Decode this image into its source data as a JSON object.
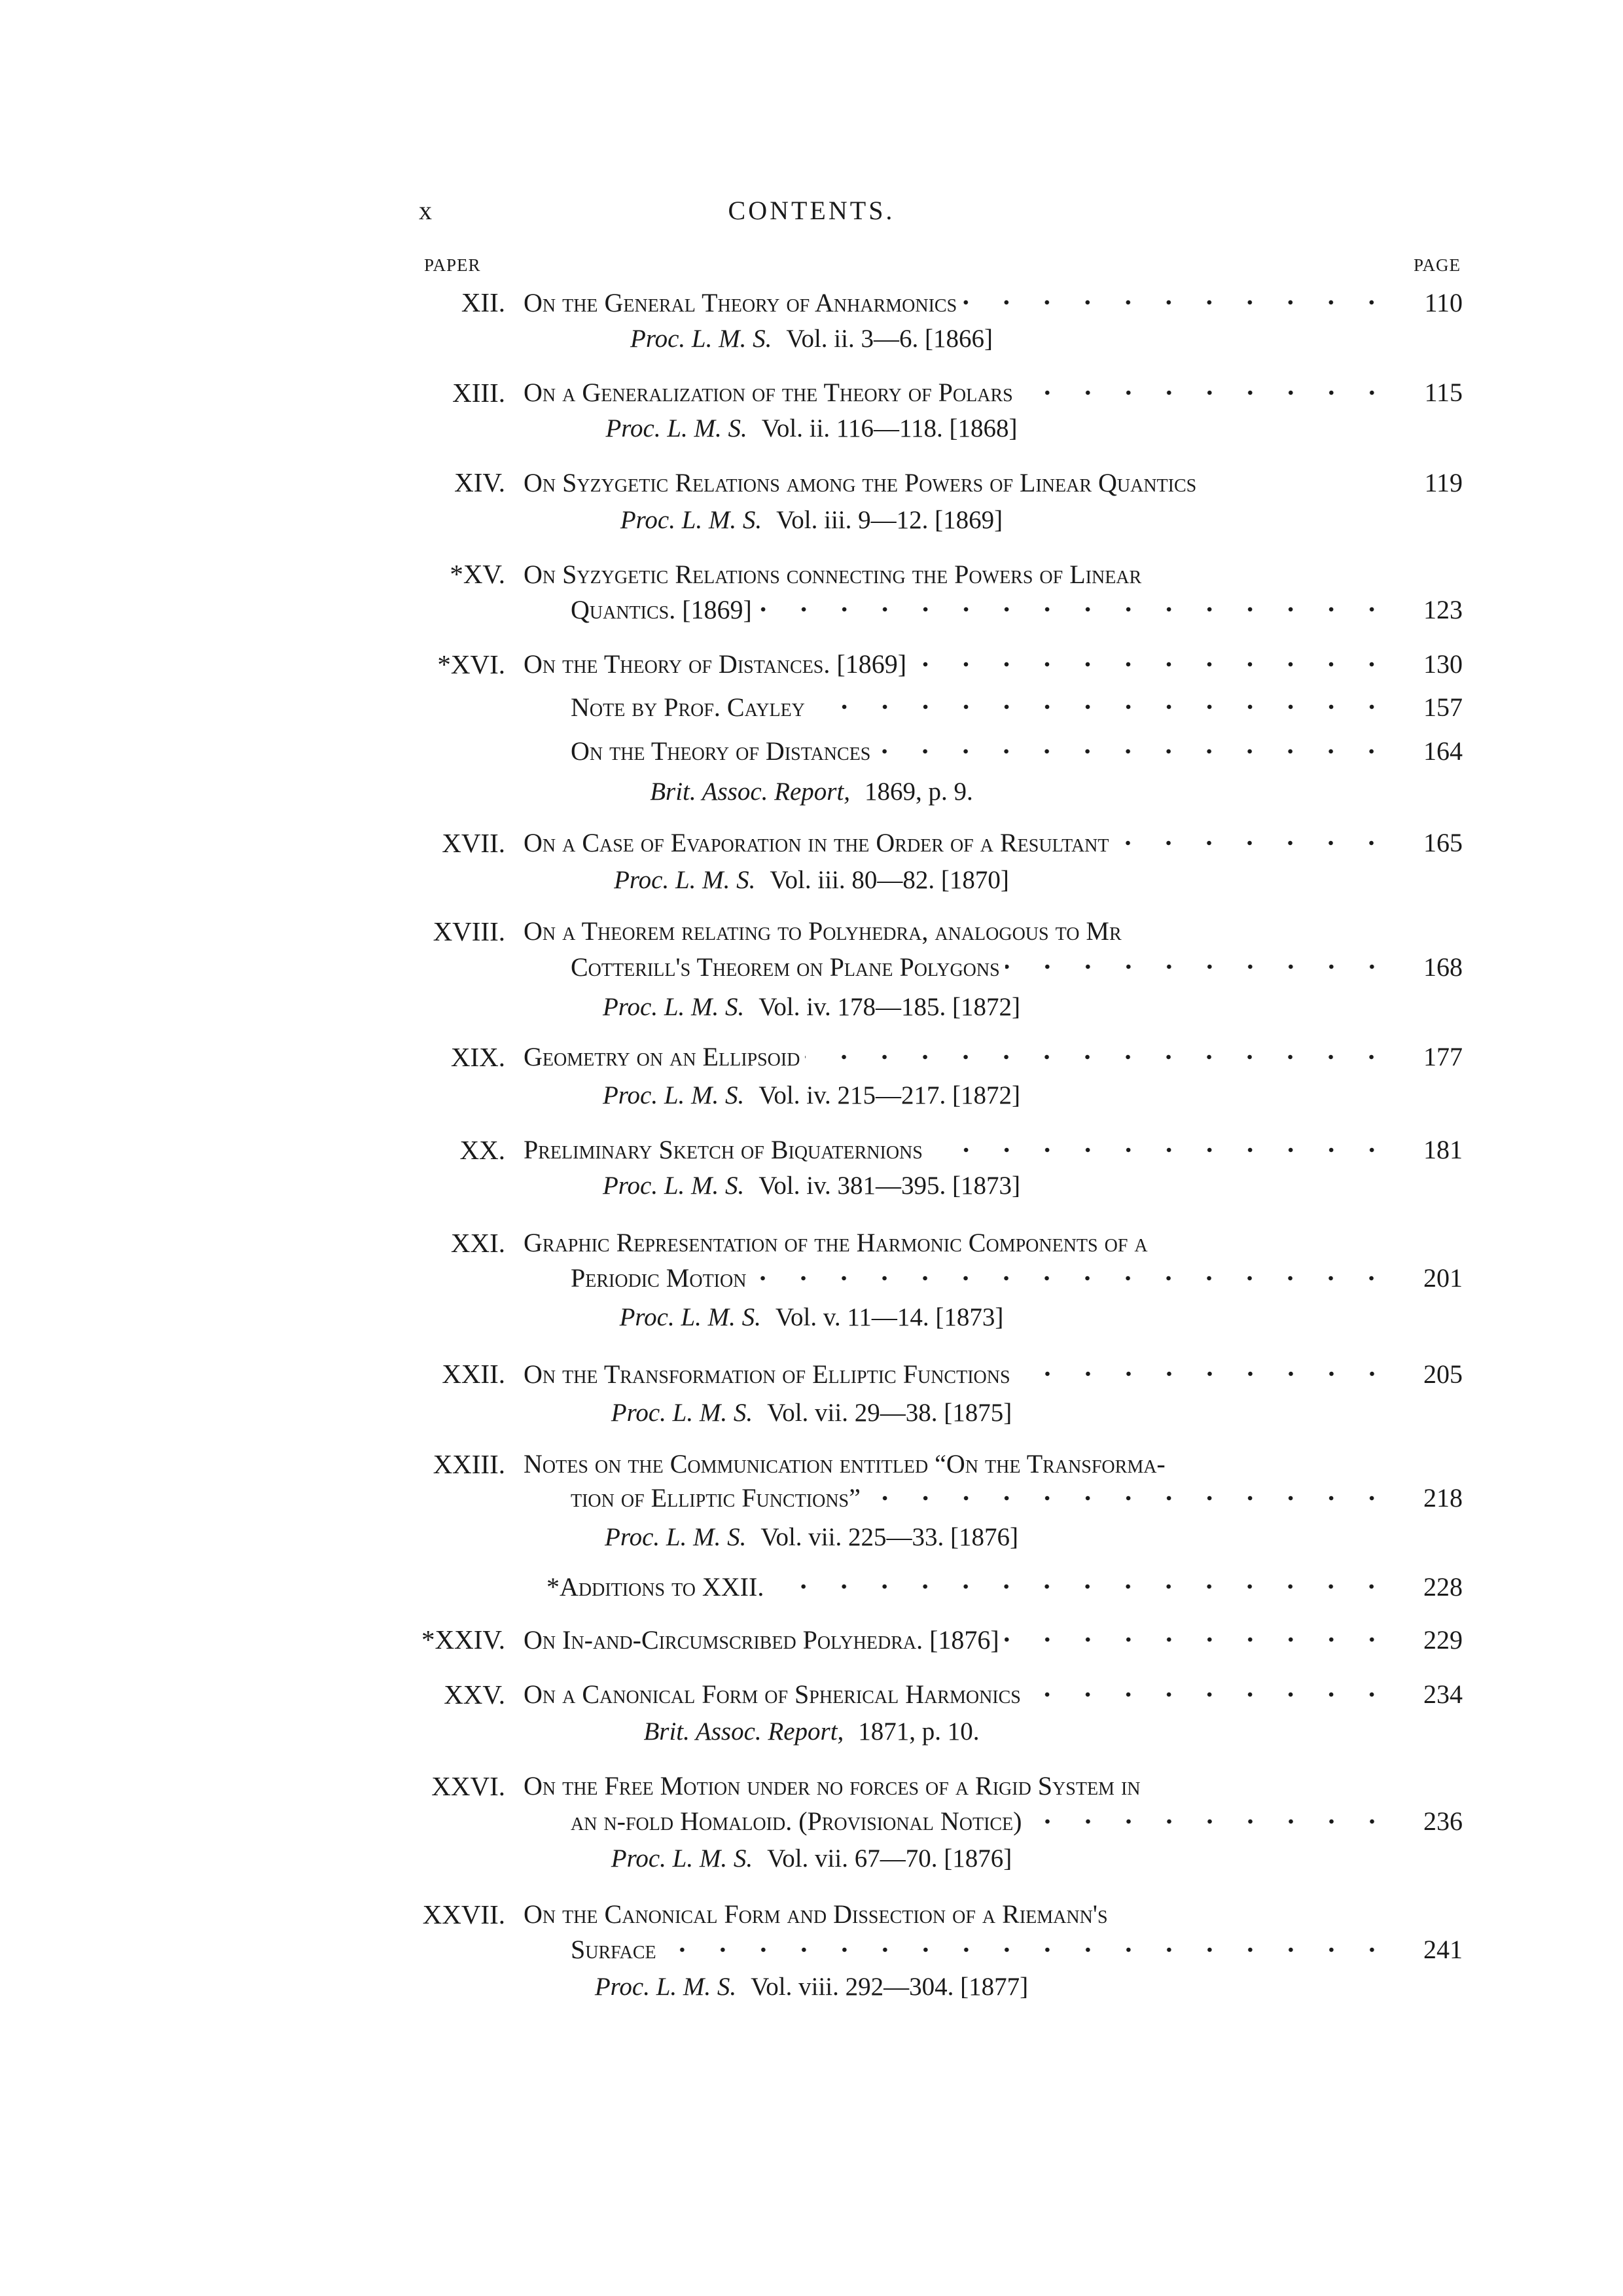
{
  "header": {
    "page_numeral": "x",
    "title": "CONTENTS."
  },
  "columns": {
    "paper": "PAPER",
    "page": "PAGE"
  },
  "entries": [
    {
      "numeral": "XII.",
      "lines": [
        {
          "text": "On the General Theory of Anharmonics",
          "page": "110"
        }
      ],
      "citation": {
        "journal": "Proc. L. M. S.",
        "details": "Vol. ii. 3—6. [1866]"
      }
    },
    {
      "numeral": "XIII.",
      "lines": [
        {
          "text": "On a Generalization of the Theory of Polars",
          "page": "115"
        }
      ],
      "citation": {
        "journal": "Proc. L. M. S.",
        "details": "Vol. ii. 116—118. [1868]"
      }
    },
    {
      "numeral": "XIV.",
      "lines": [
        {
          "text": "On Syzygetic Relations among the Powers of Linear Quantics",
          "page": "119",
          "noleader": true
        }
      ],
      "citation": {
        "journal": "Proc. L. M. S.",
        "details": "Vol. iii. 9—12. [1869]"
      }
    },
    {
      "numeral": "*XV.",
      "lines": [
        {
          "text": "On Syzygetic Relations connecting the Powers of Linear"
        },
        {
          "text": "Quantics. [1869]",
          "page": "123"
        }
      ]
    },
    {
      "numeral": "*XVI.",
      "lines": [
        {
          "text": "On the Theory of Distances. [1869]",
          "page": "130"
        }
      ],
      "subitems": [
        {
          "text": "Note by Prof. Cayley",
          "page": "157"
        },
        {
          "text": "On the Theory of Distances",
          "page": "164"
        }
      ],
      "citation": {
        "journal": "Brit. Assoc. Report,",
        "details": "1869, p. 9."
      }
    },
    {
      "numeral": "XVII.",
      "lines": [
        {
          "text": "On a Case of Evaporation in the Order of a Resultant",
          "page": "165"
        }
      ],
      "citation": {
        "journal": "Proc. L. M. S.",
        "details": "Vol. iii. 80—82. [1870]"
      }
    },
    {
      "numeral": "XVIII.",
      "lines": [
        {
          "text": "On a Theorem relating to Polyhedra, analogous to Mr"
        },
        {
          "text": "Cotterill's Theorem on Plane Polygons",
          "page": "168"
        }
      ],
      "citation": {
        "journal": "Proc. L. M. S.",
        "details": "Vol. iv. 178—185. [1872]"
      }
    },
    {
      "numeral": "XIX.",
      "lines": [
        {
          "text": "Geometry on an Ellipsoid",
          "page": "177"
        }
      ],
      "citation": {
        "journal": "Proc. L. M. S.",
        "details": "Vol. iv. 215—217. [1872]"
      }
    },
    {
      "numeral": "XX.",
      "lines": [
        {
          "text": "Preliminary Sketch of Biquaternions",
          "page": "181"
        }
      ],
      "citation": {
        "journal": "Proc. L. M. S.",
        "details": "Vol. iv. 381—395. [1873]"
      }
    },
    {
      "numeral": "XXI.",
      "lines": [
        {
          "text": "Graphic Representation of the Harmonic Components of a"
        },
        {
          "text": "Periodic Motion",
          "page": "201"
        }
      ],
      "citation": {
        "journal": "Proc. L. M. S.",
        "details": "Vol. v. 11—14. [1873]"
      }
    },
    {
      "numeral": "XXII.",
      "lines": [
        {
          "text": "On the Transformation of Elliptic Functions",
          "page": "205"
        }
      ],
      "citation": {
        "journal": "Proc. L. M. S.",
        "details": "Vol. vii. 29—38. [1875]"
      }
    },
    {
      "numeral": "XXIII.",
      "lines": [
        {
          "text": "Notes on the Communication entitled “On the Transforma-"
        },
        {
          "text": "tion of Elliptic Functions”",
          "page": "218"
        }
      ],
      "citation": {
        "journal": "Proc. L. M. S.",
        "details": "Vol. vii. 225—33. [1876]"
      },
      "subitems_after": [
        {
          "text": "*Additions to XXII.",
          "page": "228"
        }
      ]
    },
    {
      "numeral": "*XXIV.",
      "lines": [
        {
          "text": "On In-and-Circumscribed Polyhedra. [1876]",
          "page": "229"
        }
      ]
    },
    {
      "numeral": "XXV.",
      "lines": [
        {
          "text": "On a Canonical Form of Spherical Harmonics",
          "page": "234"
        }
      ],
      "citation": {
        "journal": "Brit. Assoc. Report,",
        "details": "1871, p. 10."
      }
    },
    {
      "numeral": "XXVI.",
      "lines": [
        {
          "text": "On the Free Motion under no forces of a Rigid System in"
        },
        {
          "text": "an n-fold Homaloid. (Provisional Notice)",
          "page": "236"
        }
      ],
      "citation": {
        "journal": "Proc. L. M. S.",
        "details": "Vol. vii. 67—70. [1876]"
      }
    },
    {
      "numeral": "XXVII.",
      "lines": [
        {
          "text": "On the Canonical Form and Dissection of a Riemann's"
        },
        {
          "text": "Surface",
          "page": "241"
        }
      ],
      "citation": {
        "journal": "Proc. L. M. S.",
        "details": "Vol. viii. 292—304. [1877]"
      }
    }
  ]
}
